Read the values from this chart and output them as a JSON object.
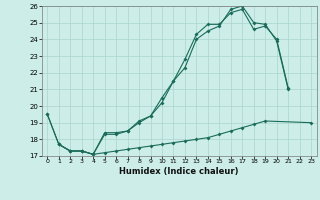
{
  "xlabel": "Humidex (Indice chaleur)",
  "xlim": [
    -0.5,
    23.5
  ],
  "ylim": [
    17,
    26
  ],
  "xticks": [
    0,
    1,
    2,
    3,
    4,
    5,
    6,
    7,
    8,
    9,
    10,
    11,
    12,
    13,
    14,
    15,
    16,
    17,
    18,
    19,
    20,
    21,
    22,
    23
  ],
  "yticks": [
    17,
    18,
    19,
    20,
    21,
    22,
    23,
    24,
    25,
    26
  ],
  "bg_color": "#cdeee8",
  "grid_color": "#aad4ce",
  "line_color": "#1a6b5a",
  "line1_x": [
    0,
    1,
    2,
    3,
    4,
    5,
    6,
    7,
    8,
    9,
    10,
    11,
    12,
    13,
    14,
    15,
    16,
    17,
    18,
    19,
    20,
    21
  ],
  "line1_y": [
    19.5,
    17.7,
    17.3,
    17.3,
    17.1,
    18.4,
    18.4,
    18.5,
    19.1,
    19.4,
    20.5,
    21.5,
    22.8,
    24.3,
    24.9,
    24.9,
    25.6,
    25.8,
    24.6,
    24.8,
    24.0,
    21.1
  ],
  "line2_x": [
    0,
    1,
    2,
    3,
    4,
    5,
    6,
    7,
    8,
    9,
    10,
    11,
    12,
    13,
    14,
    15,
    16,
    17,
    18,
    19,
    20,
    21
  ],
  "line2_y": [
    19.5,
    17.7,
    17.3,
    17.3,
    17.1,
    18.3,
    18.3,
    18.5,
    19.0,
    19.4,
    20.2,
    21.5,
    22.3,
    24.0,
    24.5,
    24.8,
    25.8,
    26.0,
    25.0,
    24.9,
    23.9,
    21.0
  ],
  "line3_x": [
    1,
    2,
    3,
    4,
    5,
    6,
    7,
    8,
    9,
    10,
    11,
    12,
    13,
    14,
    15,
    16,
    17,
    18,
    19,
    23
  ],
  "line3_y": [
    17.7,
    17.3,
    17.3,
    17.1,
    17.2,
    17.3,
    17.4,
    17.5,
    17.6,
    17.7,
    17.8,
    17.9,
    18.0,
    18.1,
    18.3,
    18.5,
    18.7,
    18.9,
    19.1,
    19.0
  ]
}
